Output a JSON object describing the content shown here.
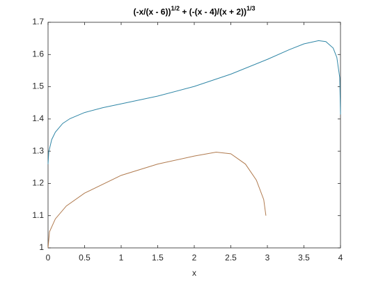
{
  "chart_data": {
    "type": "line",
    "title": [
      "(-x/(x - 6))",
      "1/2",
      " + (-(x - 4)/(x + 2))",
      "1/3"
    ],
    "xlabel": "x",
    "xlim": [
      0,
      4
    ],
    "xticks": [
      0,
      0.5,
      1,
      1.5,
      2,
      2.5,
      3,
      3.5,
      4
    ],
    "ylim": [
      1,
      1.7
    ],
    "yticks": [
      1,
      1.1,
      1.2,
      1.3,
      1.4,
      1.5,
      1.6,
      1.7
    ],
    "grid": false,
    "series": [
      {
        "color": "#2f86a6",
        "x": [
          0,
          0.01,
          0.05,
          0.1,
          0.2,
          0.3,
          0.5,
          0.75,
          1,
          1.5,
          2,
          2.5,
          3,
          3.3,
          3.5,
          3.7,
          3.8,
          3.9,
          3.95,
          3.99,
          4
        ],
        "values": [
          1.26,
          1.298,
          1.336,
          1.359,
          1.386,
          1.401,
          1.42,
          1.435,
          1.447,
          1.471,
          1.501,
          1.539,
          1.585,
          1.615,
          1.633,
          1.643,
          1.64,
          1.62,
          1.591,
          1.528,
          1.414
        ]
      },
      {
        "color": "#b07a4e",
        "x": [
          0,
          0.02,
          0.1,
          0.25,
          0.5,
          1,
          1.5,
          2,
          2.3,
          2.5,
          2.7,
          2.85,
          2.95,
          2.98
        ],
        "values": [
          1.0,
          1.05,
          1.09,
          1.13,
          1.17,
          1.225,
          1.26,
          1.285,
          1.297,
          1.292,
          1.26,
          1.21,
          1.15,
          1.1
        ]
      }
    ]
  }
}
